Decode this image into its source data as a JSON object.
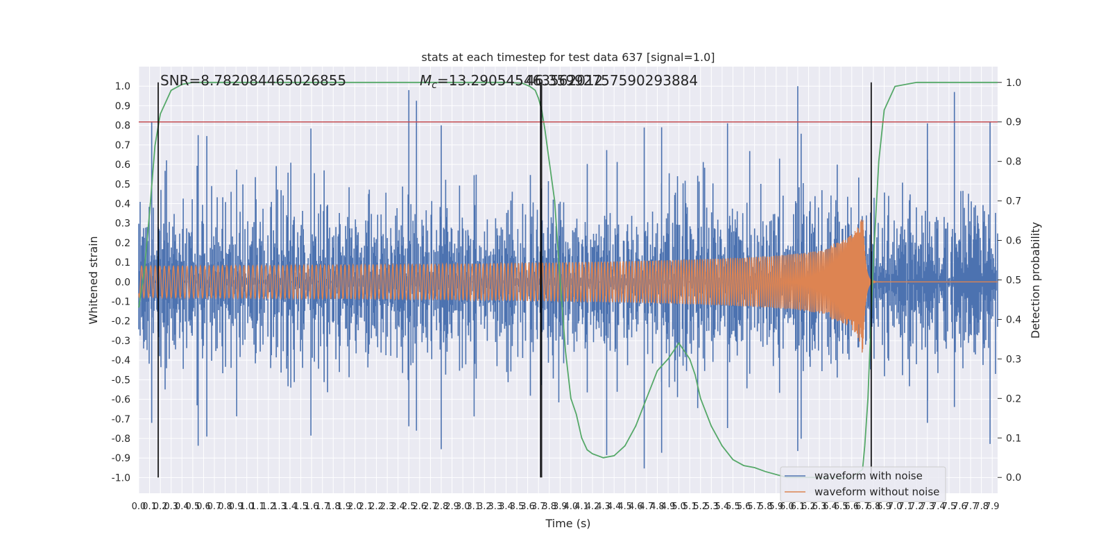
{
  "chart_data": {
    "type": "line",
    "title": "stats at each timestep for test data 637 [signal=1.0]",
    "xlabel": "Time (s)",
    "ylabel_left": "Whitened strain",
    "ylabel_right": "Detection probability",
    "xlim": [
      0.0,
      7.95
    ],
    "ylim_left": [
      -1.08,
      1.1
    ],
    "ylim_right": [
      -0.04,
      1.04
    ],
    "x_ticks": [
      "0.0",
      "0.1",
      "0.2",
      "0.3",
      "0.4",
      "0.5",
      "0.6",
      "0.7",
      "0.8",
      "0.9",
      "1.0",
      "1.1",
      "1.2",
      "1.3",
      "1.4",
      "1.5",
      "1.6",
      "1.7",
      "1.8",
      "1.9",
      "2.0",
      "2.1",
      "2.2",
      "2.3",
      "2.4",
      "2.5",
      "2.6",
      "2.7",
      "2.8",
      "2.9",
      "3.0",
      "3.1",
      "3.2",
      "3.3",
      "3.4",
      "3.5",
      "3.6",
      "3.7",
      "3.8",
      "3.9",
      "4.0",
      "4.1",
      "4.2",
      "4.3",
      "4.4",
      "4.5",
      "4.6",
      "4.7",
      "4.8",
      "4.9",
      "5.0",
      "5.1",
      "5.2",
      "5.3",
      "5.4",
      "5.5",
      "5.6",
      "5.7",
      "5.8",
      "5.9",
      "6.0",
      "6.1",
      "6.2",
      "6.3",
      "6.4",
      "6.5",
      "6.6",
      "6.7",
      "6.8",
      "6.9",
      "7.0",
      "7.1",
      "7.2",
      "7.3",
      "7.4",
      "7.5",
      "7.6",
      "7.7",
      "7.8",
      "7.9"
    ],
    "y_ticks_left": [
      "-1.0",
      "-0.9",
      "-0.8",
      "-0.7",
      "-0.6",
      "-0.5",
      "-0.4",
      "-0.3",
      "-0.2",
      "-0.1",
      "0.0",
      "0.1",
      "0.2",
      "0.3",
      "0.4",
      "0.5",
      "0.6",
      "0.7",
      "0.8",
      "0.9",
      "1.0"
    ],
    "y_ticks_right": [
      "0.0",
      "0.1",
      "0.2",
      "0.3",
      "0.4",
      "0.5",
      "0.6",
      "0.7",
      "0.8",
      "0.9",
      "1.0"
    ],
    "threshold": 0.9,
    "vertical_lines_x": [
      0.18,
      3.72,
      6.78
    ],
    "annotations": {
      "snr": "SNR=8.782084465026855",
      "mc_symbol": "M",
      "mc_subscript": "c",
      "mc_value": "=13.290545463562012",
      "overlap": "46.359927575902938​84"
    },
    "series": [
      {
        "name": "waveform with noise",
        "color": "#4c72b0",
        "axis": "left",
        "kind": "noise",
        "amplitude": 0.26,
        "peaks_y": [
          0.82,
          0.75,
          0.98,
          0.8,
          0.79,
          0.81,
          1.0,
          0.81,
          0.97,
          0.82
        ],
        "troughs_y": [
          -0.8,
          -0.93,
          -0.82,
          -0.95,
          -0.97,
          -0.83,
          -0.96,
          -0.8,
          -0.71,
          -0.92
        ]
      },
      {
        "name": "waveform without noise",
        "color": "#dd8452",
        "axis": "left",
        "kind": "chirp",
        "merger_x": 6.7,
        "peak_amplitude": 0.38
      },
      {
        "name": "detection probability",
        "color": "#55a868",
        "axis": "right",
        "x": [
          0.0,
          0.05,
          0.1,
          0.15,
          0.2,
          0.25,
          0.3,
          0.4,
          0.5,
          0.6,
          0.8,
          1.0,
          2.0,
          3.0,
          3.4,
          3.55,
          3.62,
          3.67,
          3.7,
          3.73,
          3.76,
          3.8,
          3.85,
          3.9,
          3.95,
          4.0,
          4.05,
          4.1,
          4.15,
          4.2,
          4.3,
          4.4,
          4.5,
          4.6,
          4.7,
          4.8,
          4.9,
          5.0,
          5.05,
          5.1,
          5.15,
          5.2,
          5.3,
          5.4,
          5.5,
          5.6,
          5.7,
          5.8,
          6.0,
          6.2,
          6.4,
          6.6,
          6.65,
          6.7,
          6.72,
          6.75,
          6.8,
          6.85,
          6.9,
          7.0,
          7.2,
          7.5,
          7.95
        ],
        "y": [
          0.43,
          0.52,
          0.67,
          0.84,
          0.92,
          0.95,
          0.98,
          0.995,
          1.0,
          1.0,
          1.0,
          1.0,
          1.0,
          1.0,
          1.0,
          0.998,
          0.99,
          0.98,
          0.96,
          0.93,
          0.88,
          0.8,
          0.7,
          0.5,
          0.32,
          0.2,
          0.16,
          0.1,
          0.07,
          0.06,
          0.05,
          0.055,
          0.08,
          0.13,
          0.2,
          0.27,
          0.3,
          0.34,
          0.32,
          0.3,
          0.26,
          0.2,
          0.13,
          0.08,
          0.045,
          0.03,
          0.025,
          0.015,
          0.0,
          0.0,
          0.0,
          0.0,
          0.01,
          0.02,
          0.08,
          0.2,
          0.55,
          0.8,
          0.93,
          0.99,
          1.0,
          1.0,
          1.0
        ]
      },
      {
        "name": "threshold",
        "color": "#c44e52",
        "axis": "right",
        "value": 0.9
      }
    ],
    "legend": {
      "position": "bottom-right",
      "entries": [
        "waveform with noise",
        "waveform without noise"
      ]
    },
    "grid": true
  }
}
